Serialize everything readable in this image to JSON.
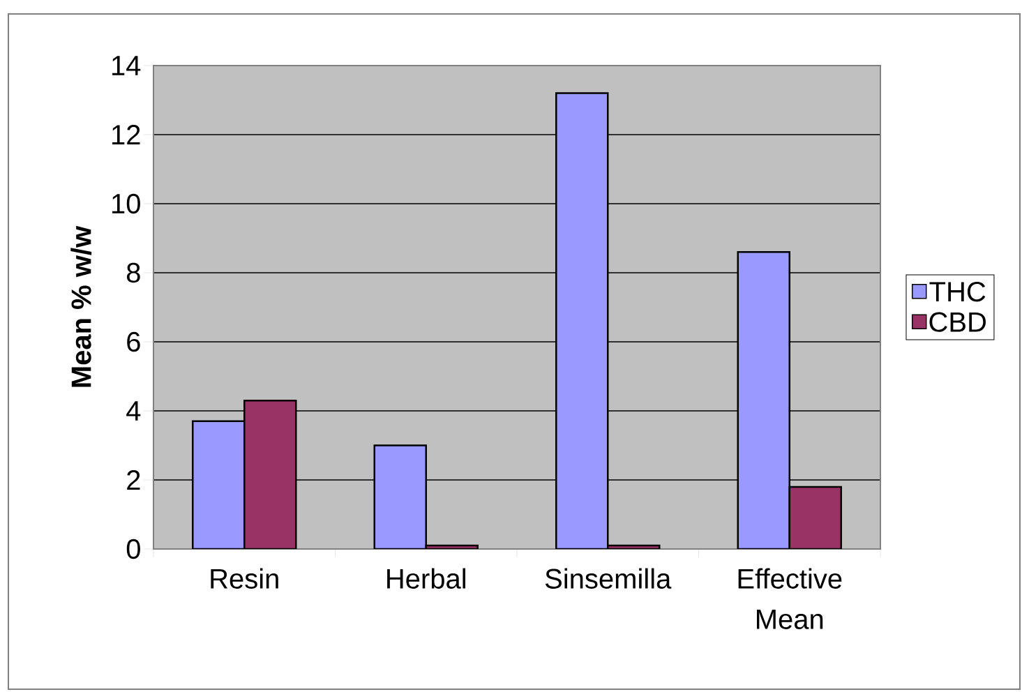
{
  "chart_data": {
    "type": "bar",
    "ylabel": "**Mean % w/w**",
    "categories": [
      "Resin",
      "Herbal",
      "Sinsemilla",
      "Effective Mean"
    ],
    "series": [
      {
        "name": "THC",
        "color": "#9999ff",
        "values": [
          3.7,
          3.0,
          13.2,
          8.6
        ]
      },
      {
        "name": "CBD",
        "color": "#993366",
        "values": [
          4.3,
          0.1,
          0.1,
          1.8
        ]
      }
    ],
    "ylim": [
      0,
      14
    ],
    "yticks": [
      0,
      2,
      4,
      6,
      8,
      10,
      12,
      14
    ],
    "grid": "y",
    "legend": "right"
  }
}
